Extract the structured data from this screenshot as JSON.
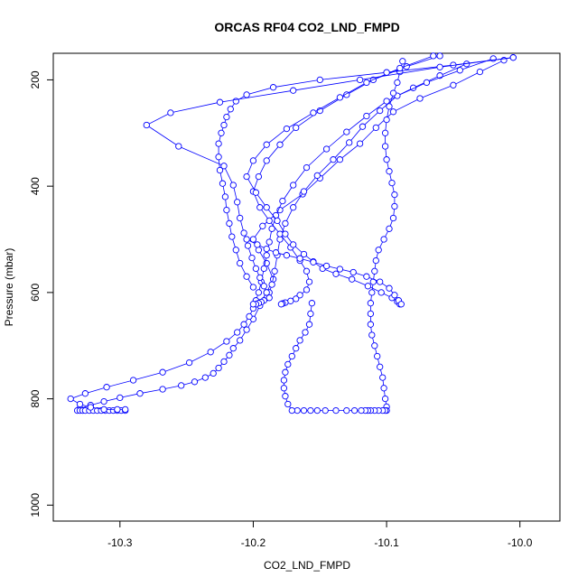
{
  "chart_data": {
    "type": "line",
    "title": "ORCAS RF04 CO2_LND_FMPD",
    "xlabel": "CO2_LND_FMPD",
    "ylabel": "Pressure (mbar)",
    "xlim": [
      -10.35,
      -9.97
    ],
    "ylim": [
      1030,
      150
    ],
    "y_inverted": true,
    "xticks": [
      -10.3,
      -10.2,
      -10.1,
      -10.0
    ],
    "xtick_labels": [
      "-10.3",
      "-10.2",
      "-10.1",
      "-10.0"
    ],
    "yticks": [
      200,
      400,
      600,
      800,
      1000
    ],
    "ytick_labels": [
      "200",
      "400",
      "600",
      "800",
      "1000"
    ],
    "grid": false,
    "series_color": "#0000ff",
    "marker": "open-circle",
    "series": [
      {
        "x": [
          -10.012,
          -10.03,
          -10.05,
          -10.075,
          -10.095,
          -10.108,
          -10.12,
          -10.135,
          -10.15,
          -10.163,
          -10.18,
          -10.193,
          -10.2,
          -10.196,
          -10.19,
          -10.185,
          -10.19,
          -10.195,
          -10.2,
          -10.205,
          -10.21,
          -10.215,
          -10.218,
          -10.222,
          -10.226,
          -10.23,
          -10.236,
          -10.244,
          -10.254,
          -10.268,
          -10.285,
          -10.3,
          -10.312,
          -10.322,
          -10.33,
          -10.332,
          -10.33,
          -10.328,
          -10.326,
          -10.323,
          -10.32,
          -10.317,
          -10.314,
          -10.311,
          -10.308,
          -10.305,
          -10.302,
          -10.299,
          -10.296
        ],
        "y": [
          163,
          185,
          210,
          235,
          260,
          290,
          320,
          350,
          385,
          415,
          445,
          475,
          500,
          520,
          545,
          575,
          600,
          625,
          650,
          670,
          690,
          705,
          718,
          730,
          742,
          752,
          760,
          768,
          775,
          782,
          790,
          798,
          805,
          812,
          818,
          822,
          822,
          822,
          822,
          822,
          822,
          822,
          822,
          822,
          822,
          822,
          822,
          822,
          822
        ]
      },
      {
        "x": [
          -10.04,
          -10.06,
          -10.08,
          -10.1,
          -10.115,
          -10.13,
          -10.145,
          -10.16,
          -10.17,
          -10.178,
          -10.183,
          -10.186,
          -10.188,
          -10.19,
          -10.192,
          -10.194,
          -10.196,
          -10.198,
          -10.2,
          -10.203,
          -10.207,
          -10.212,
          -10.22,
          -10.232,
          -10.248,
          -10.268,
          -10.29,
          -10.31,
          -10.326,
          -10.337,
          -10.33,
          -10.322,
          -10.312,
          -10.302,
          -10.296
        ],
        "y": [
          170,
          192,
          215,
          240,
          268,
          298,
          330,
          365,
          398,
          428,
          455,
          480,
          505,
          530,
          555,
          580,
          600,
          615,
          630,
          645,
          660,
          675,
          692,
          712,
          732,
          750,
          765,
          778,
          790,
          800,
          810,
          816,
          820,
          820,
          820
        ]
      },
      {
        "x": [
          -10.02,
          -10.045,
          -10.07,
          -10.092,
          -10.105,
          -10.118,
          -10.128,
          -10.14,
          -10.152,
          -10.162,
          -10.17,
          -10.176,
          -10.18,
          -10.182,
          -10.184,
          -10.186,
          -10.188,
          -10.19,
          -10.192,
          -10.194,
          -10.196,
          -10.198,
          -10.2
        ],
        "y": [
          160,
          182,
          205,
          230,
          258,
          288,
          318,
          350,
          380,
          410,
          440,
          470,
          500,
          530,
          560,
          585,
          600,
          610,
          615,
          618,
          620,
          622,
          622
        ]
      },
      {
        "x": [
          -10.088,
          -10.09,
          -10.092,
          -10.095,
          -10.098,
          -10.1,
          -10.101,
          -10.101,
          -10.1,
          -10.098,
          -10.096,
          -10.094,
          -10.094,
          -10.095,
          -10.098,
          -10.102,
          -10.106,
          -10.108,
          -10.109,
          -10.11,
          -10.111,
          -10.112,
          -10.112,
          -10.112,
          -10.111,
          -10.109,
          -10.107,
          -10.105,
          -10.103,
          -10.102,
          -10.101,
          -10.1,
          -10.1,
          -10.101,
          -10.103,
          -10.106,
          -10.109,
          -10.112,
          -10.114,
          -10.116,
          -10.119,
          -10.124,
          -10.13,
          -10.138,
          -10.146,
          -10.152,
          -10.157,
          -10.162,
          -10.167,
          -10.171,
          -10.174,
          -10.176,
          -10.177,
          -10.177,
          -10.176,
          -10.174,
          -10.171,
          -10.168,
          -10.165,
          -10.161,
          -10.158,
          -10.157,
          -10.156
        ],
        "y": [
          165,
          185,
          205,
          225,
          250,
          275,
          300,
          325,
          350,
          372,
          394,
          416,
          438,
          460,
          480,
          500,
          520,
          540,
          560,
          580,
          600,
          620,
          640,
          660,
          680,
          700,
          720,
          740,
          760,
          780,
          800,
          815,
          822,
          822,
          822,
          822,
          822,
          822,
          822,
          822,
          822,
          822,
          822,
          822,
          822,
          822,
          822,
          822,
          822,
          822,
          810,
          795,
          780,
          765,
          750,
          735,
          720,
          705,
          690,
          675,
          660,
          640,
          620
        ]
      },
      {
        "x": [
          -10.06,
          -10.085,
          -10.11,
          -10.13,
          -10.15,
          -10.168,
          -10.18,
          -10.19,
          -10.196,
          -10.2,
          -10.195,
          -10.188,
          -10.18,
          -10.172,
          -10.165,
          -10.16,
          -10.158,
          -10.16,
          -10.165,
          -10.168,
          -10.172,
          -10.176,
          -10.178,
          -10.179
        ],
        "y": [
          155,
          175,
          200,
          228,
          258,
          290,
          322,
          352,
          382,
          410,
          440,
          465,
          490,
          515,
          540,
          560,
          580,
          595,
          605,
          612,
          616,
          619,
          621,
          622
        ]
      },
      {
        "x": [
          -10.065,
          -10.09,
          -10.115,
          -10.135,
          -10.155,
          -10.175,
          -10.19,
          -10.2,
          -10.205,
          -10.198,
          -10.19,
          -10.182,
          -10.176,
          -10.17,
          -10.162,
          -10.155,
          -10.148,
          -10.138,
          -10.126,
          -10.114,
          -10.104,
          -10.096,
          -10.092,
          -10.09
        ],
        "y": [
          155,
          178,
          205,
          233,
          262,
          292,
          322,
          352,
          382,
          412,
          440,
          465,
          490,
          510,
          528,
          542,
          555,
          565,
          575,
          588,
          600,
          610,
          617,
          622
        ]
      },
      {
        "x": [
          -10.005,
          -10.05,
          -10.1,
          -10.15,
          -10.185,
          -10.205,
          -10.213,
          -10.217,
          -10.22,
          -10.222,
          -10.224,
          -10.226,
          -10.226,
          -10.225,
          -10.223,
          -10.221,
          -10.22,
          -10.218,
          -10.216,
          -10.213,
          -10.21,
          -10.205,
          -10.2
        ],
        "y": [
          158,
          172,
          186,
          200,
          214,
          228,
          240,
          255,
          270,
          285,
          300,
          320,
          345,
          370,
          395,
          420,
          445,
          470,
          495,
          520,
          545,
          570,
          590
        ]
      },
      {
        "x": [
          -10.005,
          -10.06,
          -10.12,
          -10.17,
          -10.225,
          -10.262,
          -10.28,
          -10.256,
          -10.222,
          -10.215,
          -10.212,
          -10.21,
          -10.207,
          -10.204,
          -10.201,
          -10.198,
          -10.195,
          -10.192,
          -10.19,
          -10.188
        ],
        "y": [
          158,
          176,
          200,
          220,
          242,
          262,
          285,
          325,
          362,
          398,
          430,
          460,
          488,
          512,
          535,
          555,
          572,
          588,
          600,
          610
        ]
      },
      {
        "x": [
          -10.205,
          -10.197,
          -10.19,
          -10.183,
          -10.175,
          -10.165,
          -10.155,
          -10.145,
          -10.135,
          -10.125,
          -10.115,
          -10.105,
          -10.098,
          -10.094,
          -10.091,
          -10.089
        ],
        "y": [
          500,
          510,
          518,
          525,
          530,
          536,
          543,
          550,
          556,
          562,
          570,
          580,
          592,
          605,
          615,
          622
        ]
      }
    ]
  }
}
